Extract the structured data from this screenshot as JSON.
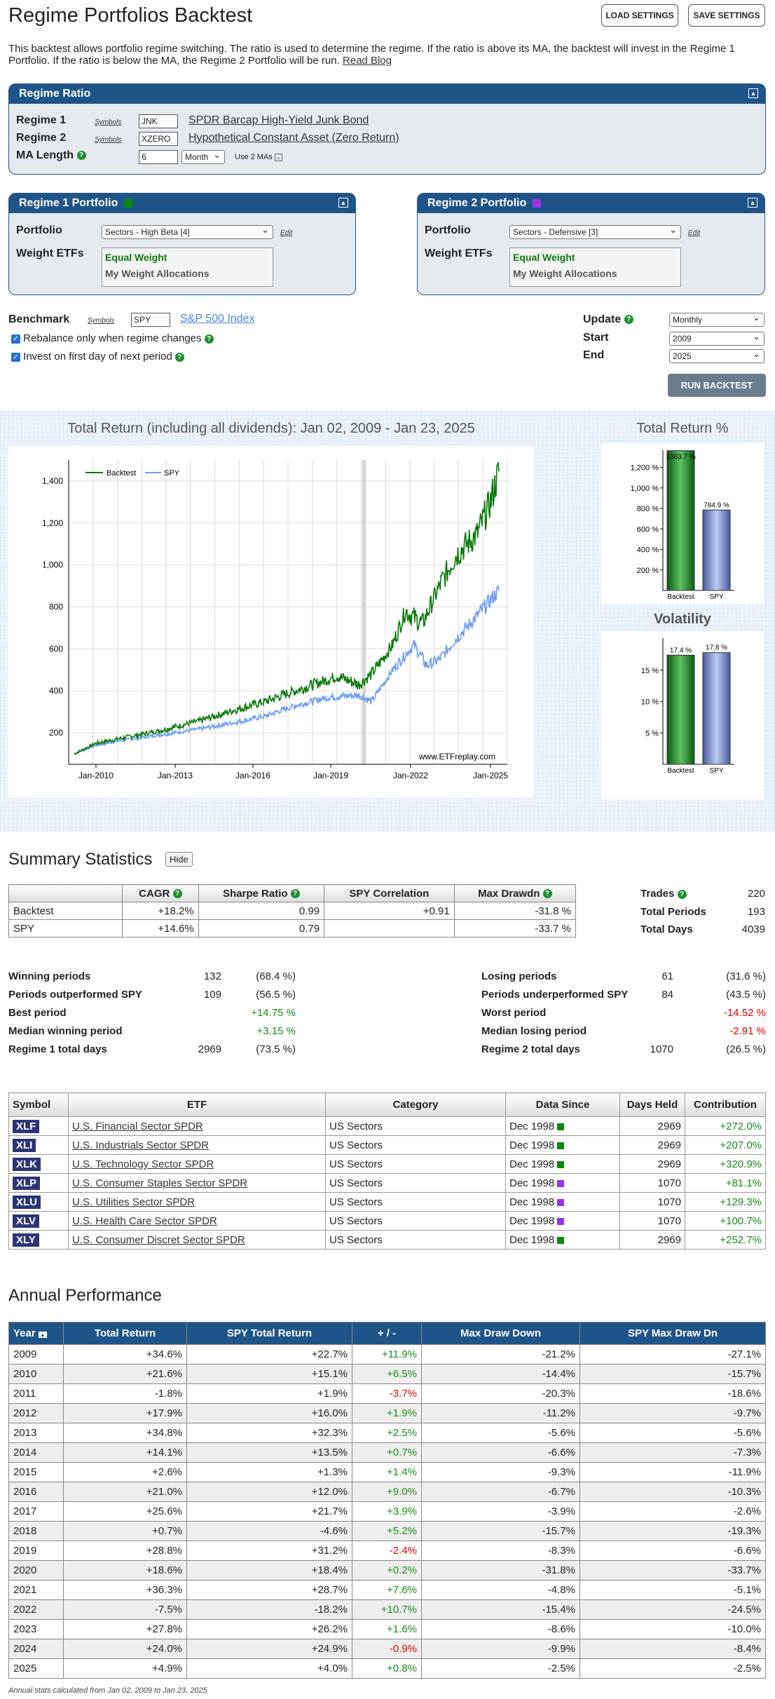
{
  "title": "Regime Portfolios Backtest",
  "buttons": {
    "load": "LOAD SETTINGS",
    "save": "SAVE SETTINGS",
    "run": "RUN BACKTEST",
    "hide": "Hide",
    "read_blog": "Read Blog",
    "edit": "Edit"
  },
  "intro": "This backtest allows portfolio regime switching. The ratio is used to determine the regime. If the ratio is above its MA, the backtest will invest in the Regime 1 Portfolio. If the ratio is below the MA, the Regime 2 Portfolio will be run.",
  "ratio": {
    "header": "Regime Ratio",
    "r1_label": "Regime 1",
    "r2_label": "Regime 2",
    "ma_label": "MA Length",
    "symbols": "Symbols",
    "r1_sym": "JNK",
    "r1_name": "SPDR Barcap High-Yield Junk Bond",
    "r2_sym": "XZERO",
    "r2_name": "Hypothetical Constant Asset (Zero Return)",
    "ma_value": "6",
    "ma_unit": "Month",
    "use2": "Use 2 MAs"
  },
  "p1": {
    "header": "Regime 1 Portfolio",
    "color": "#0a8a0a",
    "portfolio_label": "Portfolio",
    "weight_label": "Weight ETFs",
    "portfolio": "Sectors - High Beta [4]",
    "w1": "Equal Weight",
    "w2": "My Weight Allocations"
  },
  "p2": {
    "header": "Regime 2 Portfolio",
    "color": "#9933ee",
    "portfolio_label": "Portfolio",
    "weight_label": "Weight ETFs",
    "portfolio": "Sectors - Defensive [3]",
    "w1": "Equal Weight",
    "w2": "My Weight Allocations"
  },
  "bench": {
    "label": "Benchmark",
    "symbols": "Symbols",
    "sym": "SPY",
    "name": "S&P 500 Index",
    "opt1": "Rebalance only when regime changes",
    "opt2": "Invest on first day of next period"
  },
  "settings": {
    "update_label": "Update",
    "start_label": "Start",
    "end_label": "End",
    "update": "Monthly",
    "start": "2009",
    "end": "2025"
  },
  "charts": {
    "main": {
      "type": "line",
      "title": "Total Return (including all dividends): Jan 02, 2009 - Jan 23, 2025",
      "legend": [
        "Backtest",
        "SPY"
      ],
      "xticks": [
        "Jan-2010",
        "Jan-2013",
        "Jan-2016",
        "Jan-2019",
        "Jan-2022",
        "Jan-2025"
      ],
      "yticks": [
        "200",
        "400",
        "600",
        "800",
        "1,000",
        "1,200",
        "1,400"
      ],
      "watermark": "www.ETFreplay.com",
      "colors": {
        "backtest": "#0a7a0a",
        "spy": "#6d9cf0"
      }
    },
    "tr": {
      "type": "bar",
      "title": "Total Return %",
      "yticks": [
        "200 %",
        "400 %",
        "600 %",
        "800 %",
        "1,000 %",
        "1,200 %"
      ],
      "categories": [
        "Backtest",
        "SPY"
      ],
      "values": [
        1363.7,
        784.9
      ],
      "labels": [
        "1363.7 %",
        "784.9 %"
      ]
    },
    "vol": {
      "type": "bar",
      "title": "Volatility",
      "yticks": [
        "5 %",
        "10 %",
        "15 %"
      ],
      "categories": [
        "Backtest",
        "SPY"
      ],
      "values": [
        17.4,
        17.8
      ],
      "labels": [
        "17.4 %",
        "17.8 %"
      ]
    }
  },
  "summary": {
    "title": "Summary Statistics",
    "headers": [
      "CAGR",
      "Sharpe Ratio",
      "SPY Correlation",
      "Max Drawdn"
    ],
    "rows": [
      {
        "name": "Backtest",
        "cagr": "+18.2%",
        "sharpe": "0.99",
        "corr": "+0.91",
        "dd": "-31.8 %"
      },
      {
        "name": "SPY",
        "cagr": "+14.6%",
        "sharpe": "0.79",
        "corr": "",
        "dd": "-33.7 %"
      }
    ],
    "trades_label": "Trades",
    "trades": "220",
    "periods_label": "Total Periods",
    "periods": "193",
    "days_label": "Total Days",
    "days": "4039"
  },
  "left_stats": [
    {
      "k": "Winning periods",
      "v": "132",
      "p": "(68.4 %)"
    },
    {
      "k": "Periods outperformed SPY",
      "v": "109",
      "p": "(56.5 %)"
    },
    {
      "k": "Best period",
      "v": "",
      "p": "+14.75 %"
    },
    {
      "k": "Median winning period",
      "v": "",
      "p": "+3.15 %"
    },
    {
      "k": "Regime 1 total days",
      "v": "2969",
      "p": "(73.5 %)"
    }
  ],
  "right_stats": [
    {
      "k": "Losing periods",
      "v": "61",
      "p": "(31.6 %)"
    },
    {
      "k": "Periods underperformed SPY",
      "v": "84",
      "p": "(43.5 %)"
    },
    {
      "k": "Worst period",
      "v": "",
      "p": "-14.52 %"
    },
    {
      "k": "Median losing period",
      "v": "",
      "p": "-2.91 %"
    },
    {
      "k": "Regime 2 total days",
      "v": "1070",
      "p": "(26.5 %)"
    }
  ],
  "etf": {
    "headers": [
      "Symbol",
      "ETF",
      "Category",
      "Data Since",
      "Days Held",
      "Contribution"
    ],
    "rows": [
      {
        "sym": "XLF",
        "name": "U.S. Financial Sector SPDR",
        "cat": "US Sectors",
        "since": "Dec 1998",
        "c": "#0a8a0a",
        "days": "2969",
        "contrib": "+272.0%"
      },
      {
        "sym": "XLI",
        "name": "U.S. Industrials Sector SPDR",
        "cat": "US Sectors",
        "since": "Dec 1998",
        "c": "#0a8a0a",
        "days": "2969",
        "contrib": "+207.0%"
      },
      {
        "sym": "XLK",
        "name": "U.S. Technology Sector SPDR",
        "cat": "US Sectors",
        "since": "Dec 1998",
        "c": "#0a8a0a",
        "days": "2969",
        "contrib": "+320.9%"
      },
      {
        "sym": "XLP",
        "name": "U.S. Consumer Staples Sector SPDR",
        "cat": "US Sectors",
        "since": "Dec 1998",
        "c": "#9933ee",
        "days": "1070",
        "contrib": "+81.1%"
      },
      {
        "sym": "XLU",
        "name": "U.S. Utilities Sector SPDR",
        "cat": "US Sectors",
        "since": "Dec 1998",
        "c": "#9933ee",
        "days": "1070",
        "contrib": "+129.3%"
      },
      {
        "sym": "XLV",
        "name": "U.S. Health Care Sector SPDR",
        "cat": "US Sectors",
        "since": "Dec 1998",
        "c": "#9933ee",
        "days": "1070",
        "contrib": "+100.7%"
      },
      {
        "sym": "XLY",
        "name": "U.S. Consumer Discret Sector SPDR",
        "cat": "US Sectors",
        "since": "Dec 1998",
        "c": "#0a8a0a",
        "days": "2969",
        "contrib": "+252.7%"
      }
    ]
  },
  "annual": {
    "title": "Annual Performance",
    "headers": [
      "Year",
      "Total Return",
      "SPY Total Return",
      "+ / -",
      "Max Draw Down",
      "SPY Max Draw Dn"
    ],
    "rows": [
      [
        "2009",
        "+34.6%",
        "+22.7%",
        "+11.9%",
        "-21.2%",
        "-27.1%"
      ],
      [
        "2010",
        "+21.6%",
        "+15.1%",
        "+6.5%",
        "-14.4%",
        "-15.7%"
      ],
      [
        "2011",
        "-1.8%",
        "+1.9%",
        "-3.7%",
        "-20.3%",
        "-18.6%"
      ],
      [
        "2012",
        "+17.9%",
        "+16.0%",
        "+1.9%",
        "-11.2%",
        "-9.7%"
      ],
      [
        "2013",
        "+34.8%",
        "+32.3%",
        "+2.5%",
        "-5.6%",
        "-5.6%"
      ],
      [
        "2014",
        "+14.1%",
        "+13.5%",
        "+0.7%",
        "-6.6%",
        "-7.3%"
      ],
      [
        "2015",
        "+2.6%",
        "+1.3%",
        "+1.4%",
        "-9.3%",
        "-11.9%"
      ],
      [
        "2016",
        "+21.0%",
        "+12.0%",
        "+9.0%",
        "-6.7%",
        "-10.3%"
      ],
      [
        "2017",
        "+25.6%",
        "+21.7%",
        "+3.9%",
        "-3.9%",
        "-2.6%"
      ],
      [
        "2018",
        "+0.7%",
        "-4.6%",
        "+5.2%",
        "-15.7%",
        "-19.3%"
      ],
      [
        "2019",
        "+28.8%",
        "+31.2%",
        "-2.4%",
        "-8.3%",
        "-6.6%"
      ],
      [
        "2020",
        "+18.6%",
        "+18.4%",
        "+0.2%",
        "-31.8%",
        "-33.7%"
      ],
      [
        "2021",
        "+36.3%",
        "+28.7%",
        "+7.6%",
        "-4.8%",
        "-5.1%"
      ],
      [
        "2022",
        "-7.5%",
        "-18.2%",
        "+10.7%",
        "-15.4%",
        "-24.5%"
      ],
      [
        "2023",
        "+27.8%",
        "+26.2%",
        "+1.6%",
        "-8.6%",
        "-10.0%"
      ],
      [
        "2024",
        "+24.0%",
        "+24.9%",
        "-0.9%",
        "-9.9%",
        "-8.4%"
      ],
      [
        "2025",
        "+4.9%",
        "+4.0%",
        "+0.8%",
        "-2.5%",
        "-2.5%"
      ]
    ],
    "footnote": "Annual stats calculated from Jan 02, 2009 to Jan 23, 2025"
  }
}
